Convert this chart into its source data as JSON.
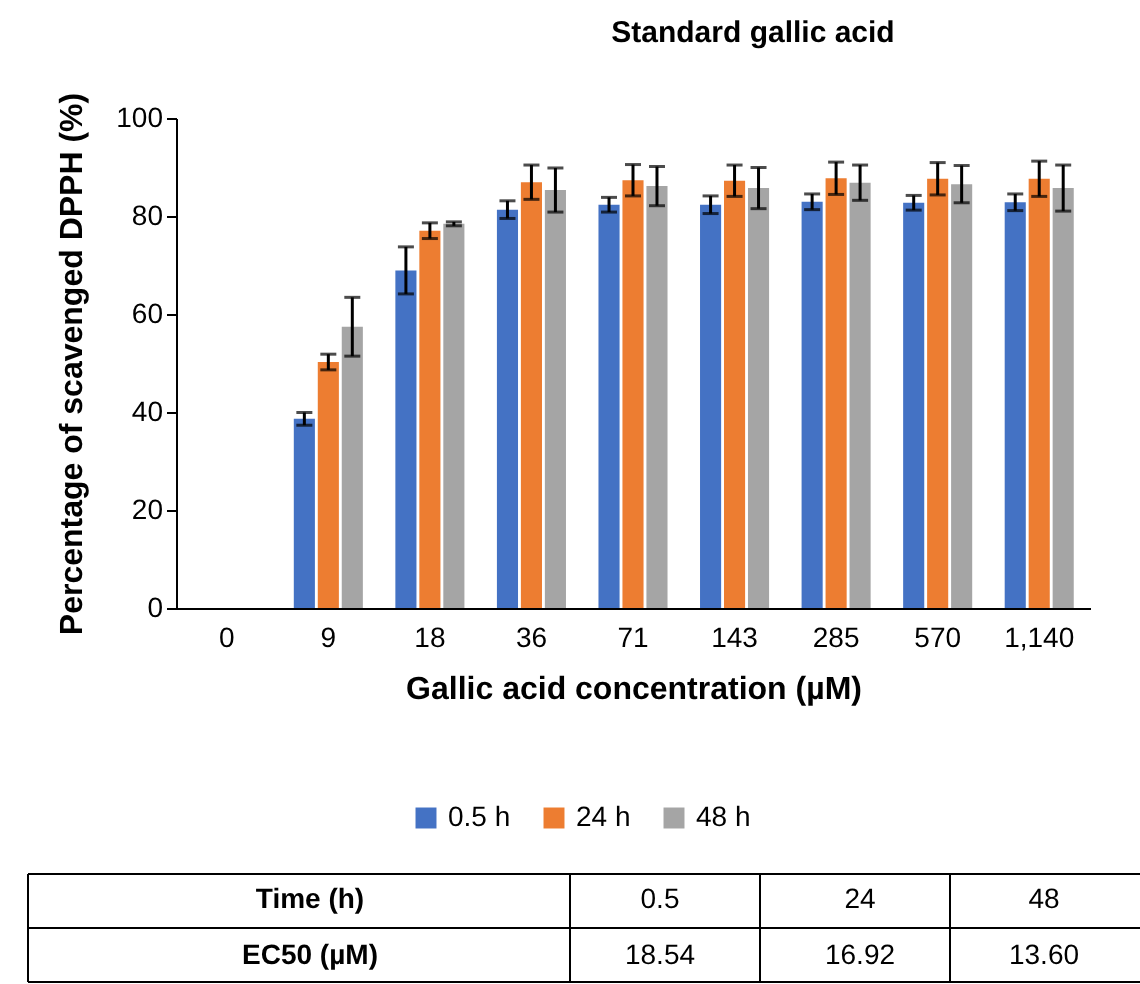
{
  "chart_data": {
    "type": "bar",
    "title": "Standard gallic acid",
    "xlabel": "Gallic acid concentration (µM)",
    "ylabel": "Percentage of scavenged DPPH (%)",
    "categories": [
      "0",
      "9",
      "18",
      "36",
      "71",
      "143",
      "285",
      "570",
      "1,140"
    ],
    "series": [
      {
        "name": "0.5 h",
        "color": "#4472c4",
        "values": [
          0,
          38.6,
          68.9,
          81.3,
          82.3,
          82.3,
          82.9,
          82.7,
          82.8
        ],
        "errors": [
          null,
          1.3,
          4.8,
          1.8,
          1.5,
          1.8,
          1.6,
          1.5,
          1.7
        ]
      },
      {
        "name": "24 h",
        "color": "#ed7d31",
        "values": [
          0,
          50.2,
          77,
          86.9,
          87.3,
          87.2,
          87.7,
          87.6,
          87.6
        ],
        "errors": [
          null,
          1.6,
          1.6,
          3.5,
          3.2,
          3.2,
          3.3,
          3.3,
          3.6
        ]
      },
      {
        "name": "48 h",
        "color": "#a5a5a5",
        "values": [
          0,
          57.4,
          78.4,
          85.3,
          86.1,
          85.7,
          86.8,
          86.5,
          85.7
        ],
        "errors": [
          null,
          6,
          0.4,
          4.5,
          4,
          4.2,
          3.6,
          3.8,
          4.7
        ]
      }
    ],
    "ylim": [
      0,
      100
    ],
    "yticks": [
      0,
      20,
      40,
      60,
      80,
      100
    ],
    "grid": false,
    "legend": "bottom",
    "annotations": [
      "Time (h)",
      "0.5",
      "24",
      "48",
      "EC50 (µM)",
      "18.54",
      "16.92",
      "13.60"
    ]
  }
}
